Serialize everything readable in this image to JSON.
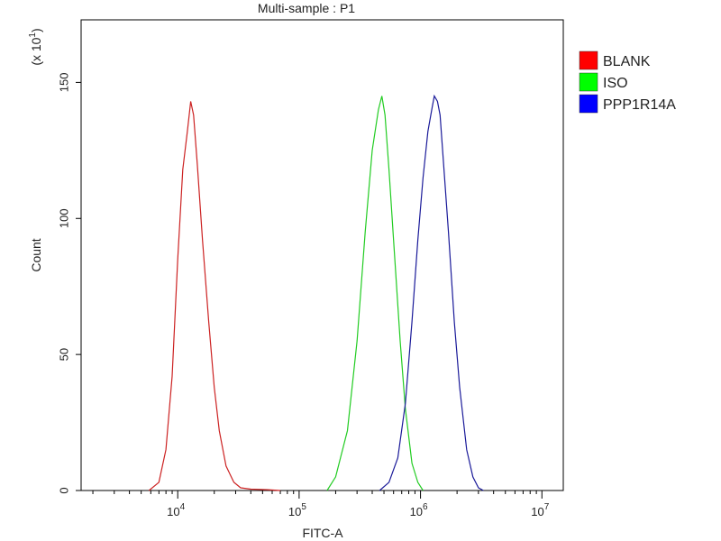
{
  "chart_data": {
    "type": "line",
    "title": "Multi-sample : P1",
    "xlabel": "FITC-A",
    "ylabel": "Count",
    "y_multiplier_label": "(x 10",
    "y_multiplier_exp": "1",
    "x_scale": "log",
    "xlim": [
      1600,
      15000000
    ],
    "ylim": [
      0,
      173
    ],
    "x_ticks": [
      {
        "value": 10000,
        "base": "10",
        "exp": "4"
      },
      {
        "value": 100000,
        "base": "10",
        "exp": "5"
      },
      {
        "value": 1000000,
        "base": "10",
        "exp": "6"
      },
      {
        "value": 10000000,
        "base": "10",
        "exp": "7"
      }
    ],
    "y_ticks": [
      {
        "value": 0,
        "label": "0"
      },
      {
        "value": 50,
        "label": "50"
      },
      {
        "value": 100,
        "label": "100"
      },
      {
        "value": 150,
        "label": "150"
      }
    ],
    "legend": {
      "position": "right"
    },
    "series": [
      {
        "name": "BLANK",
        "color": "#cc2222",
        "swatch": "#ff0000",
        "x": [
          5800,
          7000,
          8000,
          9000,
          10000,
          11000,
          12000,
          12800,
          13500,
          14500,
          16000,
          18000,
          20000,
          22000,
          25000,
          29000,
          33000,
          40000,
          55000,
          70000
        ],
        "y": [
          0,
          3,
          15,
          42,
          85,
          118,
          132,
          143,
          138,
          120,
          92,
          62,
          38,
          22,
          9,
          3,
          1,
          0.5,
          0.3,
          0
        ]
      },
      {
        "name": "ISO",
        "color": "#22cc22",
        "swatch": "#00ff00",
        "x": [
          170000,
          200000,
          250000,
          300000,
          350000,
          400000,
          450000,
          480000,
          510000,
          550000,
          600000,
          680000,
          750000,
          850000,
          950000,
          1050000
        ],
        "y": [
          0,
          5,
          22,
          55,
          95,
          125,
          140,
          145,
          138,
          118,
          92,
          55,
          30,
          10,
          3,
          0
        ]
      },
      {
        "name": "PPP1R14A",
        "color": "#1a1a99",
        "swatch": "#0000ff",
        "x": [
          460000,
          550000,
          650000,
          750000,
          850000,
          950000,
          1050000,
          1150000,
          1250000,
          1300000,
          1380000,
          1450000,
          1550000,
          1700000,
          1900000,
          2100000,
          2400000,
          2700000,
          3000000,
          3300000
        ],
        "y": [
          0,
          3,
          12,
          32,
          62,
          92,
          115,
          132,
          141,
          145,
          143,
          138,
          120,
          95,
          62,
          38,
          15,
          5,
          1,
          0
        ]
      }
    ]
  }
}
